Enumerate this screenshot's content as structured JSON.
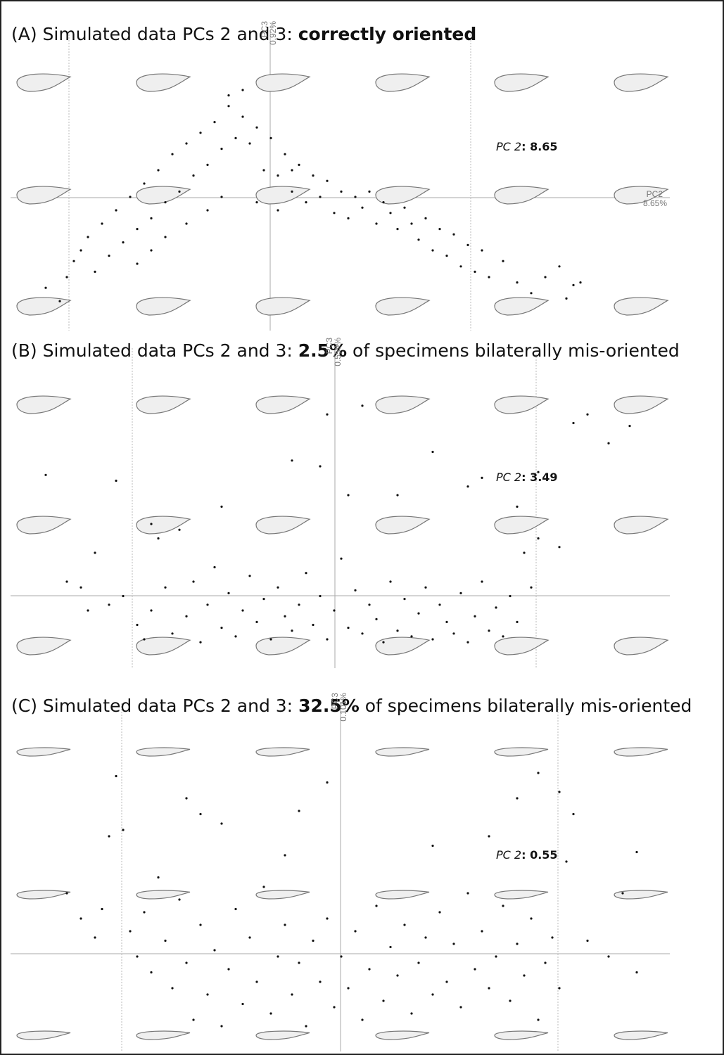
{
  "chart_data": [
    {
      "type": "scatter",
      "title_prefix": "(A) Simulated data PCs 2 and 3: ",
      "title_emphasis": "correctly oriented",
      "y_axis_label": "PC3",
      "y_axis_pct": "0.92%",
      "x_axis_label": "PC2",
      "x_axis_pct": "8.65%",
      "annotation_label": "PC 2",
      "annotation_value": ": 8.65",
      "xlim": [
        0,
        100
      ],
      "ylim": [
        0,
        100
      ],
      "color": "#111111",
      "x": [
        5,
        7,
        8,
        9,
        10,
        12,
        11,
        13,
        14,
        15,
        16,
        17,
        18,
        19,
        20,
        21,
        22,
        23,
        24,
        25,
        26,
        27,
        28,
        29,
        30,
        31,
        32,
        33,
        34,
        35,
        36,
        37,
        38,
        39,
        40,
        41,
        42,
        43,
        44,
        45,
        46,
        47,
        48,
        49,
        50,
        51,
        52,
        53,
        54,
        55,
        56,
        57,
        58,
        59,
        60,
        61,
        62,
        63,
        64,
        65,
        66,
        67,
        68,
        70,
        72,
        74,
        76,
        78,
        80,
        81,
        79,
        18,
        20,
        25,
        28,
        30,
        22,
        35,
        38,
        40,
        33,
        31
      ],
      "values": [
        16,
        11,
        20,
        26,
        30,
        22,
        35,
        40,
        28,
        45,
        33,
        50,
        38,
        55,
        42,
        60,
        48,
        66,
        52,
        70,
        58,
        74,
        62,
        78,
        68,
        84,
        72,
        80,
        70,
        76,
        60,
        72,
        58,
        66,
        52,
        62,
        48,
        58,
        50,
        56,
        44,
        52,
        42,
        50,
        46,
        52,
        40,
        48,
        44,
        38,
        46,
        40,
        34,
        42,
        30,
        38,
        28,
        36,
        24,
        32,
        22,
        30,
        20,
        26,
        18,
        14,
        20,
        24,
        17,
        18,
        12,
        25,
        30,
        40,
        45,
        50,
        35,
        48,
        45,
        60,
        90,
        88
      ]
    },
    {
      "type": "scatter",
      "title_prefix": "(B) Simulated data PCs 2 and 3: ",
      "title_emphasis": "2.5%",
      "title_suffix": " of specimens bilaterally mis-oriented",
      "y_axis_label": "PC3",
      "y_axis_pct": "0.559%",
      "annotation_label": "PC 2",
      "annotation_value": ": 3.49",
      "xlim": [
        0,
        100
      ],
      "ylim": [
        0,
        100
      ],
      "color": "#111111",
      "x": [
        5,
        8,
        10,
        11,
        12,
        14,
        15,
        16,
        18,
        19,
        20,
        21,
        22,
        23,
        24,
        25,
        26,
        27,
        28,
        29,
        30,
        31,
        32,
        33,
        34,
        35,
        36,
        37,
        38,
        39,
        40,
        41,
        42,
        43,
        44,
        45,
        46,
        47,
        48,
        49,
        50,
        51,
        52,
        53,
        54,
        55,
        56,
        57,
        58,
        59,
        60,
        61,
        62,
        63,
        64,
        65,
        66,
        67,
        68,
        69,
        70,
        71,
        72,
        73,
        74,
        75,
        78,
        80,
        82,
        85,
        88,
        50,
        45,
        40,
        65,
        60,
        55,
        67,
        72,
        30,
        20,
        48,
        44,
        75
      ],
      "values": [
        67,
        30,
        28,
        20,
        40,
        22,
        65,
        25,
        15,
        10,
        20,
        45,
        28,
        12,
        48,
        18,
        30,
        9,
        22,
        35,
        14,
        26,
        11,
        20,
        32,
        16,
        24,
        10,
        28,
        18,
        13,
        22,
        33,
        15,
        25,
        10,
        20,
        38,
        14,
        27,
        12,
        22,
        17,
        9,
        30,
        13,
        24,
        11,
        19,
        28,
        10,
        22,
        16,
        12,
        26,
        9,
        18,
        30,
        13,
        21,
        11,
        25,
        16,
        40,
        28,
        45,
        42,
        85,
        88,
        78,
        84,
        91,
        88,
        72,
        63,
        75,
        60,
        66,
        56,
        56,
        50,
        60,
        70,
        68
      ]
    },
    {
      "type": "scatter",
      "title_prefix": "(C) Simulated data PCs 2 and 3: ",
      "title_emphasis": "32.5%",
      "title_suffix": " of specimens bilaterally mis-oriented",
      "y_axis_label": "PC3",
      "y_axis_pct": "0.101%",
      "annotation_label": "PC 2",
      "annotation_value": ": 0.55",
      "xlim": [
        0,
        100
      ],
      "ylim": [
        0,
        100
      ],
      "color": "#111111",
      "x": [
        8,
        10,
        12,
        13,
        14,
        15,
        16,
        17,
        18,
        19,
        20,
        21,
        22,
        23,
        24,
        25,
        26,
        27,
        28,
        29,
        30,
        31,
        32,
        33,
        34,
        35,
        36,
        37,
        38,
        39,
        40,
        41,
        42,
        43,
        44,
        45,
        46,
        47,
        48,
        49,
        50,
        51,
        52,
        53,
        54,
        55,
        56,
        57,
        58,
        59,
        60,
        61,
        62,
        63,
        64,
        65,
        66,
        67,
        68,
        69,
        70,
        71,
        72,
        73,
        74,
        75,
        76,
        77,
        78,
        79,
        80,
        82,
        85,
        87,
        89,
        25,
        27,
        30,
        39,
        41,
        45,
        60,
        68,
        72,
        75,
        78,
        89
      ],
      "values": [
        50,
        42,
        36,
        45,
        68,
        87,
        70,
        38,
        30,
        44,
        25,
        55,
        35,
        20,
        48,
        28,
        10,
        40,
        18,
        32,
        8,
        26,
        45,
        15,
        36,
        22,
        52,
        12,
        30,
        40,
        18,
        28,
        8,
        35,
        22,
        42,
        14,
        30,
        20,
        38,
        10,
        26,
        46,
        16,
        33,
        24,
        40,
        12,
        28,
        36,
        18,
        44,
        22,
        34,
        14,
        50,
        26,
        38,
        20,
        30,
        46,
        16,
        34,
        24,
        42,
        10,
        28,
        36,
        20,
        60,
        75,
        35,
        30,
        50,
        25,
        80,
        75,
        72,
        62,
        76,
        85,
        65,
        68,
        80,
        88,
        82,
        63
      ]
    }
  ]
}
